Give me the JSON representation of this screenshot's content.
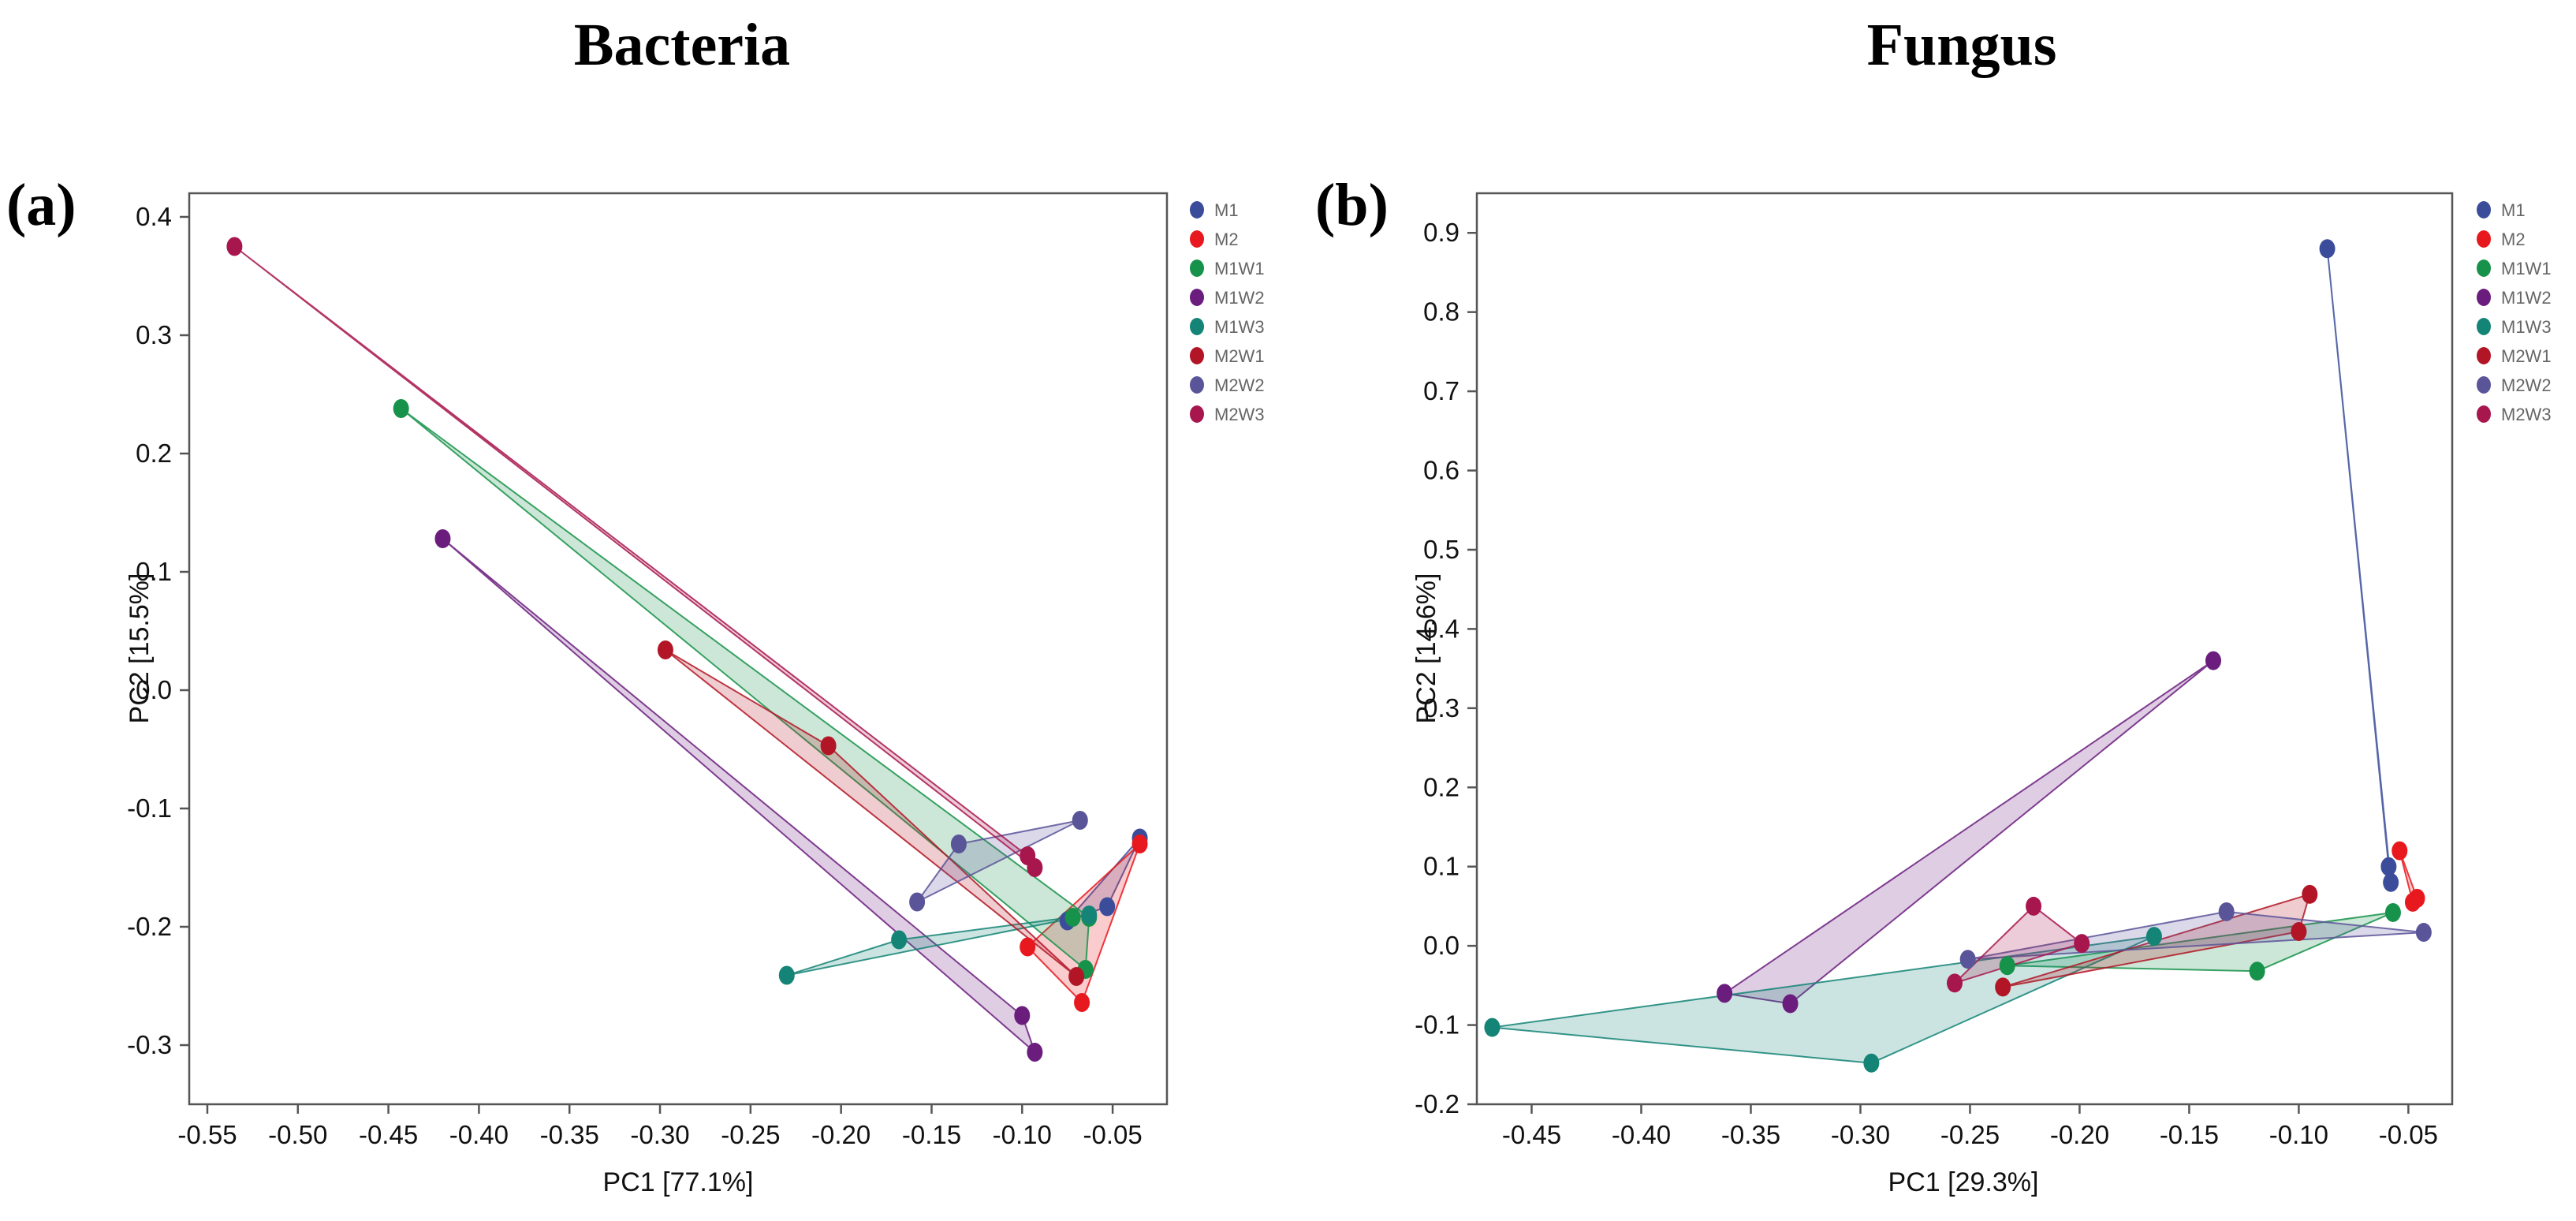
{
  "chart_data": [
    {
      "type": "scatter",
      "panel_label": "(a)",
      "title": "Bacteria",
      "xlabel": "PC1 [77.1%]",
      "ylabel": "PC2 [15.5%]",
      "xlim": [
        -0.56,
        -0.02
      ],
      "ylim": [
        -0.35,
        0.42
      ],
      "xticks": [
        -0.55,
        -0.5,
        -0.45,
        -0.4,
        -0.35,
        -0.3,
        -0.25,
        -0.2,
        -0.15,
        -0.1,
        -0.05
      ],
      "xtick_labels": [
        "-0.55",
        "-0.50",
        "-0.45",
        "-0.40",
        "-0.35",
        "-0.30",
        "-0.25",
        "-0.20",
        "-0.15",
        "-0.10",
        "-0.05"
      ],
      "yticks": [
        0.4,
        0.3,
        0.2,
        0.1,
        0.0,
        -0.1,
        -0.2,
        -0.3
      ],
      "ytick_labels": [
        "0.4",
        "0.3",
        "0.2",
        "0.1",
        "0.0",
        "-0.1",
        "-0.2",
        "-0.3"
      ],
      "legend_position": "right",
      "series": [
        {
          "name": "M1",
          "color": "#3B4D9A",
          "points": [
            [
              -0.035,
              -0.125
            ],
            [
              -0.053,
              -0.183
            ],
            [
              -0.075,
              -0.195
            ]
          ]
        },
        {
          "name": "M2",
          "color": "#E8191E",
          "points": [
            [
              -0.035,
              -0.13
            ],
            [
              -0.067,
              -0.264
            ],
            [
              -0.097,
              -0.217
            ]
          ]
        },
        {
          "name": "M1W1",
          "color": "#17924A",
          "points": [
            [
              -0.443,
              0.238
            ],
            [
              -0.063,
              -0.192
            ],
            [
              -0.065,
              -0.236
            ],
            [
              -0.072,
              -0.192
            ]
          ]
        },
        {
          "name": "M1W2",
          "color": "#6B1D7E",
          "points": [
            [
              -0.42,
              0.128
            ],
            [
              -0.1,
              -0.275
            ],
            [
              -0.093,
              -0.306
            ]
          ]
        },
        {
          "name": "M1W3",
          "color": "#148476",
          "points": [
            [
              -0.23,
              -0.241
            ],
            [
              -0.168,
              -0.211
            ],
            [
              -0.063,
              -0.19
            ]
          ]
        },
        {
          "name": "M2W1",
          "color": "#B21626",
          "points": [
            [
              -0.297,
              0.034
            ],
            [
              -0.207,
              -0.047
            ],
            [
              -0.07,
              -0.242
            ]
          ]
        },
        {
          "name": "M2W2",
          "color": "#5A5499",
          "points": [
            [
              -0.158,
              -0.179
            ],
            [
              -0.135,
              -0.13
            ],
            [
              -0.068,
              -0.11
            ]
          ]
        },
        {
          "name": "M2W3",
          "color": "#A8164E",
          "points": [
            [
              -0.535,
              0.375
            ],
            [
              -0.097,
              -0.14
            ],
            [
              -0.093,
              -0.15
            ]
          ]
        }
      ]
    },
    {
      "type": "scatter",
      "panel_label": "(b)",
      "title": "Fungus",
      "xlabel": "PC1 [29.3%]",
      "ylabel": "PC2 [14.6%]",
      "xlim": [
        -0.475,
        -0.03
      ],
      "ylim": [
        -0.2,
        0.95
      ],
      "xticks": [
        -0.45,
        -0.4,
        -0.35,
        -0.3,
        -0.25,
        -0.2,
        -0.15,
        -0.1,
        -0.05
      ],
      "xtick_labels": [
        "-0.45",
        "-0.40",
        "-0.35",
        "-0.30",
        "-0.25",
        "-0.20",
        "-0.15",
        "-0.10",
        "-0.05"
      ],
      "yticks": [
        0.9,
        0.8,
        0.7,
        0.6,
        0.5,
        0.4,
        0.3,
        0.2,
        0.1,
        0.0,
        -0.1,
        -0.2
      ],
      "ytick_labels": [
        "0.9",
        "0.8",
        "0.7",
        "0.6",
        "0.5",
        "0.4",
        "0.3",
        "0.2",
        "0.1",
        "0.0",
        "-0.1",
        "-0.2"
      ],
      "legend_position": "right",
      "series": [
        {
          "name": "M1",
          "color": "#3B4D9A",
          "points": [
            [
              -0.087,
              0.88
            ],
            [
              -0.059,
              0.1
            ],
            [
              -0.058,
              0.08
            ]
          ]
        },
        {
          "name": "M2",
          "color": "#E8191E",
          "points": [
            [
              -0.054,
              0.12
            ],
            [
              -0.048,
              0.055
            ],
            [
              -0.046,
              0.06
            ]
          ]
        },
        {
          "name": "M1W1",
          "color": "#17924A",
          "points": [
            [
              -0.233,
              -0.025
            ],
            [
              -0.119,
              -0.032
            ],
            [
              -0.057,
              0.042
            ]
          ]
        },
        {
          "name": "M1W2",
          "color": "#6B1D7E",
          "points": [
            [
              -0.362,
              -0.06
            ],
            [
              -0.332,
              -0.073
            ],
            [
              -0.139,
              0.36
            ]
          ]
        },
        {
          "name": "M1W3",
          "color": "#148476",
          "points": [
            [
              -0.468,
              -0.103
            ],
            [
              -0.295,
              -0.148
            ],
            [
              -0.166,
              0.012
            ]
          ]
        },
        {
          "name": "M2W1",
          "color": "#B21626",
          "points": [
            [
              -0.235,
              -0.052
            ],
            [
              -0.1,
              0.018
            ],
            [
              -0.095,
              0.065
            ]
          ]
        },
        {
          "name": "M2W2",
          "color": "#5A5499",
          "points": [
            [
              -0.251,
              -0.017
            ],
            [
              -0.133,
              0.043
            ],
            [
              -0.043,
              0.017
            ]
          ]
        },
        {
          "name": "M2W3",
          "color": "#A8164E",
          "points": [
            [
              -0.257,
              -0.047
            ],
            [
              -0.221,
              0.05
            ],
            [
              -0.199,
              0.003
            ]
          ]
        }
      ]
    }
  ]
}
